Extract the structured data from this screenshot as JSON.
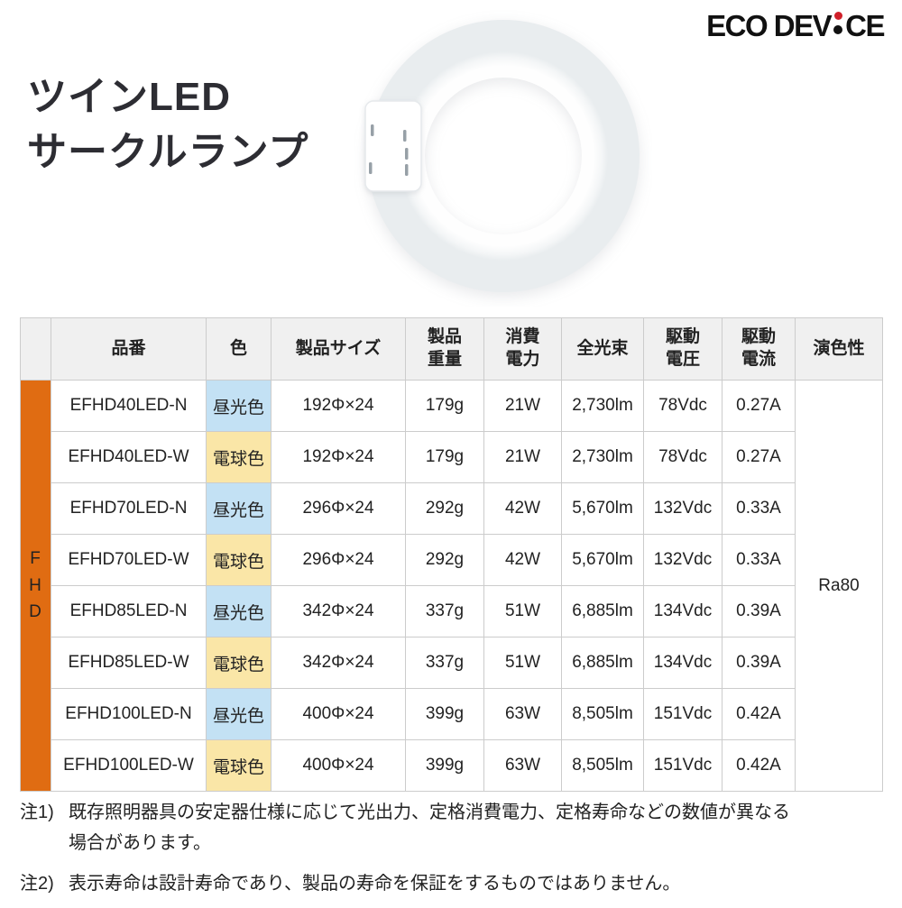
{
  "logo": {
    "name": "ECO DEVICE",
    "text_pre": "ECO DEV",
    "text_post": "CE"
  },
  "title": {
    "line1": "ツインLED",
    "line2": "サークルランプ"
  },
  "table": {
    "group_label": "FHD",
    "headers": [
      {
        "key": "model",
        "lines": [
          "品番"
        ]
      },
      {
        "key": "color",
        "lines": [
          "色"
        ]
      },
      {
        "key": "size",
        "lines": [
          "製品サイズ"
        ]
      },
      {
        "key": "weight",
        "lines": [
          "製品",
          "重量"
        ]
      },
      {
        "key": "power",
        "lines": [
          "消費",
          "電力"
        ]
      },
      {
        "key": "flux",
        "lines": [
          "全光束"
        ]
      },
      {
        "key": "voltage",
        "lines": [
          "駆動",
          "電圧"
        ]
      },
      {
        "key": "current",
        "lines": [
          "駆動",
          "電流"
        ]
      },
      {
        "key": "cri",
        "lines": [
          "演色性"
        ]
      }
    ],
    "rows": [
      {
        "model": "EFHD40LED-N",
        "color": "昼光色",
        "color_type": "daylight",
        "size": "192Φ×24",
        "weight": "179g",
        "power": "21W",
        "flux": "2,730lm",
        "voltage": "78Vdc",
        "current": "0.27A"
      },
      {
        "model": "EFHD40LED-W",
        "color": "電球色",
        "color_type": "bulb",
        "size": "192Φ×24",
        "weight": "179g",
        "power": "21W",
        "flux": "2,730lm",
        "voltage": "78Vdc",
        "current": "0.27A"
      },
      {
        "model": "EFHD70LED-N",
        "color": "昼光色",
        "color_type": "daylight",
        "size": "296Φ×24",
        "weight": "292g",
        "power": "42W",
        "flux": "5,670lm",
        "voltage": "132Vdc",
        "current": "0.33A"
      },
      {
        "model": "EFHD70LED-W",
        "color": "電球色",
        "color_type": "bulb",
        "size": "296Φ×24",
        "weight": "292g",
        "power": "42W",
        "flux": "5,670lm",
        "voltage": "132Vdc",
        "current": "0.33A"
      },
      {
        "model": "EFHD85LED-N",
        "color": "昼光色",
        "color_type": "daylight",
        "size": "342Φ×24",
        "weight": "337g",
        "power": "51W",
        "flux": "6,885lm",
        "voltage": "134Vdc",
        "current": "0.39A"
      },
      {
        "model": "EFHD85LED-W",
        "color": "電球色",
        "color_type": "bulb",
        "size": "342Φ×24",
        "weight": "337g",
        "power": "51W",
        "flux": "6,885lm",
        "voltage": "134Vdc",
        "current": "0.39A"
      },
      {
        "model": "EFHD100LED-N",
        "color": "昼光色",
        "color_type": "daylight",
        "size": "400Φ×24",
        "weight": "399g",
        "power": "63W",
        "flux": "8,505lm",
        "voltage": "151Vdc",
        "current": "0.42A"
      },
      {
        "model": "EFHD100LED-W",
        "color": "電球色",
        "color_type": "bulb",
        "size": "400Φ×24",
        "weight": "399g",
        "power": "63W",
        "flux": "8,505lm",
        "voltage": "151Vdc",
        "current": "0.42A"
      }
    ],
    "cri": "Ra80"
  },
  "notes": [
    {
      "label": "注1)",
      "lines": [
        "既存照明器具の安定器仕様に応じて光出力、定格消費電力、定格寿命などの数値が異なる",
        "場合があります。"
      ]
    },
    {
      "label": "注2)",
      "lines": [
        "表示寿命は設計寿命であり、製品の寿命を保証をするものではありません。"
      ]
    }
  ],
  "colors": {
    "accent_orange": "#e06c12",
    "daylight_bg": "#c3e1f4",
    "bulb_bg": "#fae6a7",
    "header_bg": "#f0f0f0",
    "border": "#cccccc",
    "logo_dot_red": "#d0202a"
  }
}
